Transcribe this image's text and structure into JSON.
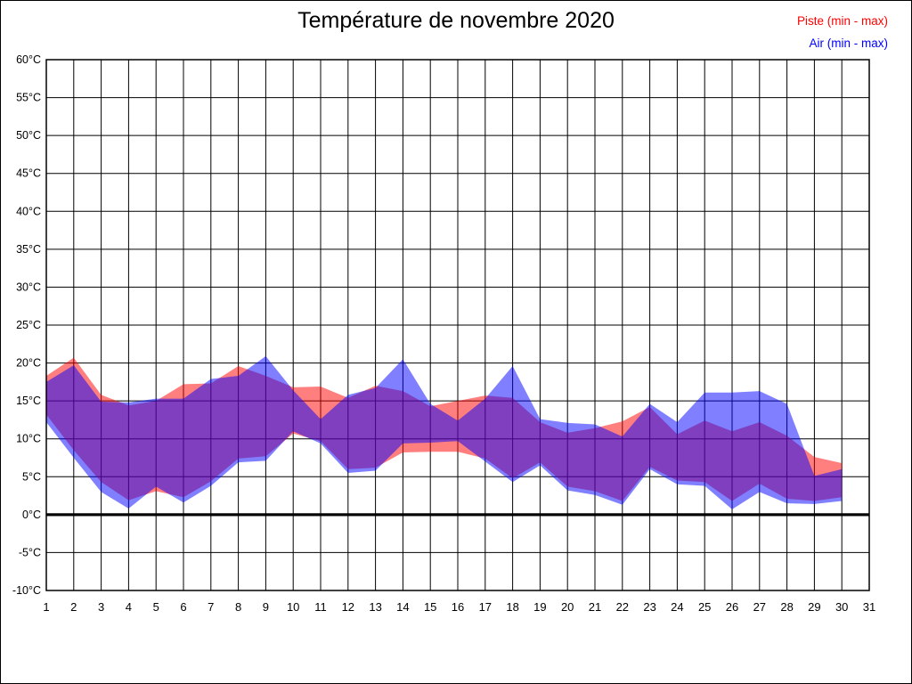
{
  "page": {
    "title": "Température de novembre 2020"
  },
  "chart_data": {
    "type": "area",
    "subtype": "min-max-range-bands",
    "title": "Température de novembre 2020",
    "xlabel": "",
    "ylabel": "",
    "x_unit": "day of month",
    "y_unit": "°C",
    "xlim": [
      1,
      31
    ],
    "ylim": [
      -10,
      60
    ],
    "grid": true,
    "zero_line_emphasized": true,
    "legend_position": "top-right",
    "y_tick_labels": [
      "60°C",
      "55°C",
      "50°C",
      "45°C",
      "40°C",
      "35°C",
      "30°C",
      "25°C",
      "20°C",
      "15°C",
      "10°C",
      "5°C",
      "0°C",
      "-5°C",
      "-10°C"
    ],
    "x_tick_labels": [
      "1",
      "2",
      "3",
      "4",
      "5",
      "6",
      "7",
      "8",
      "9",
      "10",
      "11",
      "12",
      "13",
      "14",
      "15",
      "16",
      "17",
      "18",
      "19",
      "20",
      "21",
      "22",
      "23",
      "24",
      "25",
      "26",
      "27",
      "28",
      "29",
      "30",
      "31"
    ],
    "x": [
      1,
      2,
      3,
      4,
      5,
      6,
      7,
      8,
      9,
      10,
      11,
      12,
      13,
      14,
      15,
      16,
      17,
      18,
      19,
      20,
      21,
      22,
      23,
      24,
      25,
      26,
      27,
      28,
      29,
      30
    ],
    "series": [
      {
        "name": "Piste (min - max)",
        "color": "#ff0000",
        "opacity": 0.5,
        "min": [
          13.2,
          8.5,
          4.3,
          1.9,
          3.1,
          2.3,
          4.4,
          7.4,
          7.7,
          10.7,
          9.7,
          6.0,
          6.2,
          8.2,
          8.3,
          8.3,
          7.4,
          4.8,
          6.9,
          3.7,
          3.1,
          1.8,
          6.3,
          4.5,
          4.3,
          1.8,
          4.1,
          2.1,
          1.8,
          2.3
        ],
        "max": [
          18.3,
          20.7,
          15.8,
          14.4,
          15.0,
          17.2,
          17.3,
          19.6,
          18.3,
          16.8,
          16.9,
          15.4,
          17.0,
          16.3,
          14.3,
          15.0,
          15.7,
          15.4,
          12.2,
          10.8,
          11.4,
          12.3,
          14.2,
          10.6,
          12.4,
          11.0,
          12.2,
          10.4,
          7.6,
          6.8
        ]
      },
      {
        "name": "Air (min - max)",
        "color": "#0000ff",
        "opacity": 0.5,
        "min": [
          12.2,
          7.5,
          3.0,
          0.8,
          3.7,
          1.6,
          3.8,
          6.9,
          7.1,
          11.0,
          9.4,
          5.5,
          5.8,
          9.4,
          9.5,
          9.7,
          7.0,
          4.3,
          6.5,
          3.2,
          2.6,
          1.3,
          6.0,
          4.0,
          3.8,
          0.7,
          3.0,
          1.5,
          1.4,
          1.8
        ],
        "max": [
          17.5,
          19.7,
          14.9,
          14.8,
          15.3,
          15.3,
          17.9,
          18.3,
          20.9,
          16.4,
          12.6,
          15.8,
          16.7,
          20.5,
          14.6,
          12.4,
          15.3,
          19.6,
          12.6,
          12.1,
          11.9,
          10.3,
          14.6,
          12.2,
          16.1,
          16.1,
          16.3,
          14.6,
          5.1,
          6.0
        ]
      }
    ]
  }
}
